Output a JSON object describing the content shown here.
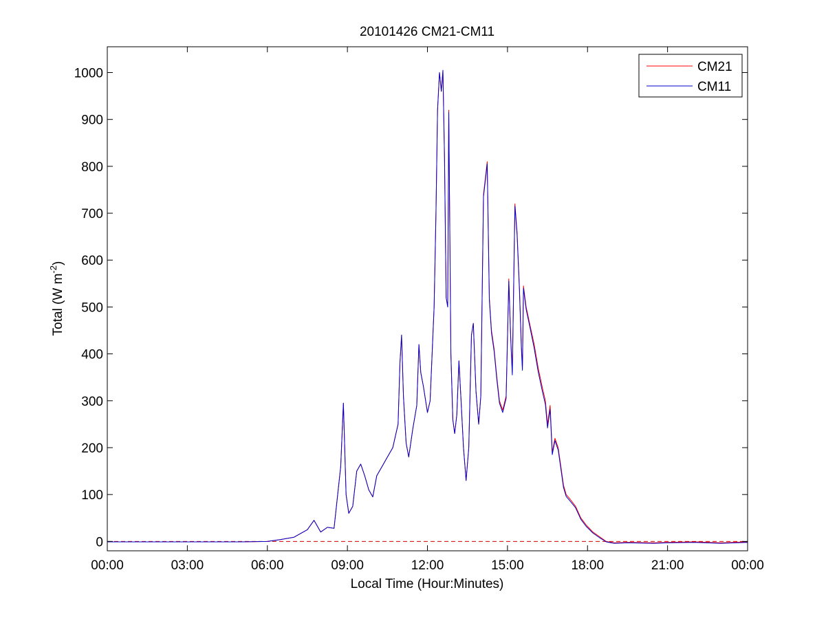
{
  "chart_data": {
    "type": "line",
    "title": "20101426 CM21-CM11",
    "xlabel": "Local Time (Hour:Minutes)",
    "ylabel": "Total (W m",
    "ylabel_sup": "-2",
    "ylabel_close": ")",
    "x_unit": "hours (local time)",
    "xlim": [
      0,
      24
    ],
    "ylim": [
      -20,
      1055
    ],
    "x_ticks": [
      0,
      3,
      6,
      9,
      12,
      15,
      18,
      21,
      24
    ],
    "x_tick_labels": [
      "00:00",
      "03:00",
      "06:00",
      "09:00",
      "12:00",
      "15:00",
      "18:00",
      "21:00",
      "00:00"
    ],
    "y_ticks": [
      0,
      100,
      200,
      300,
      400,
      500,
      600,
      700,
      800,
      900,
      1000
    ],
    "y_tick_labels": [
      "0",
      "100",
      "200",
      "300",
      "400",
      "500",
      "600",
      "700",
      "800",
      "900",
      "1000"
    ],
    "grid": false,
    "legend_position": "top-right",
    "baseline": {
      "y": 0,
      "style": "dashed",
      "color": "#cc0000"
    },
    "series": [
      {
        "name": "CM21",
        "color": "#ff0000",
        "points": [
          [
            0.0,
            -1
          ],
          [
            3.0,
            -1
          ],
          [
            5.0,
            -1
          ],
          [
            6.0,
            0
          ],
          [
            6.5,
            4
          ],
          [
            7.0,
            9
          ],
          [
            7.5,
            25
          ],
          [
            7.75,
            45
          ],
          [
            8.0,
            20
          ],
          [
            8.25,
            30
          ],
          [
            8.5,
            28
          ],
          [
            8.75,
            160
          ],
          [
            8.85,
            295
          ],
          [
            8.95,
            100
          ],
          [
            9.05,
            60
          ],
          [
            9.2,
            75
          ],
          [
            9.35,
            150
          ],
          [
            9.5,
            165
          ],
          [
            9.65,
            140
          ],
          [
            9.8,
            110
          ],
          [
            9.95,
            95
          ],
          [
            10.1,
            140
          ],
          [
            10.3,
            160
          ],
          [
            10.5,
            180
          ],
          [
            10.7,
            200
          ],
          [
            10.9,
            250
          ],
          [
            10.97,
            380
          ],
          [
            11.03,
            440
          ],
          [
            11.1,
            310
          ],
          [
            11.2,
            210
          ],
          [
            11.3,
            180
          ],
          [
            11.45,
            240
          ],
          [
            11.6,
            290
          ],
          [
            11.68,
            420
          ],
          [
            11.75,
            360
          ],
          [
            11.85,
            330
          ],
          [
            12.0,
            275
          ],
          [
            12.1,
            300
          ],
          [
            12.25,
            500
          ],
          [
            12.32,
            700
          ],
          [
            12.38,
            920
          ],
          [
            12.45,
            1000
          ],
          [
            12.52,
            960
          ],
          [
            12.58,
            1002
          ],
          [
            12.64,
            820
          ],
          [
            12.7,
            520
          ],
          [
            12.76,
            500
          ],
          [
            12.8,
            920
          ],
          [
            12.88,
            400
          ],
          [
            12.95,
            260
          ],
          [
            13.02,
            230
          ],
          [
            13.1,
            270
          ],
          [
            13.18,
            385
          ],
          [
            13.26,
            300
          ],
          [
            13.35,
            200
          ],
          [
            13.45,
            130
          ],
          [
            13.55,
            200
          ],
          [
            13.65,
            440
          ],
          [
            13.72,
            465
          ],
          [
            13.82,
            320
          ],
          [
            13.92,
            250
          ],
          [
            14.0,
            310
          ],
          [
            14.1,
            740
          ],
          [
            14.18,
            780
          ],
          [
            14.24,
            810
          ],
          [
            14.32,
            520
          ],
          [
            14.4,
            450
          ],
          [
            14.5,
            410
          ],
          [
            14.6,
            350
          ],
          [
            14.7,
            300
          ],
          [
            14.82,
            280
          ],
          [
            14.95,
            310
          ],
          [
            15.05,
            560
          ],
          [
            15.12,
            440
          ],
          [
            15.18,
            360
          ],
          [
            15.28,
            720
          ],
          [
            15.36,
            660
          ],
          [
            15.45,
            540
          ],
          [
            15.52,
            420
          ],
          [
            15.56,
            370
          ],
          [
            15.6,
            545
          ],
          [
            15.7,
            500
          ],
          [
            15.85,
            460
          ],
          [
            16.0,
            420
          ],
          [
            16.15,
            370
          ],
          [
            16.3,
            330
          ],
          [
            16.42,
            300
          ],
          [
            16.5,
            250
          ],
          [
            16.6,
            290
          ],
          [
            16.68,
            190
          ],
          [
            16.78,
            220
          ],
          [
            16.9,
            200
          ],
          [
            17.0,
            160
          ],
          [
            17.1,
            120
          ],
          [
            17.2,
            100
          ],
          [
            17.35,
            90
          ],
          [
            17.55,
            75
          ],
          [
            17.75,
            50
          ],
          [
            17.95,
            35
          ],
          [
            18.2,
            20
          ],
          [
            18.45,
            10
          ],
          [
            18.7,
            0
          ],
          [
            19.0,
            -3
          ],
          [
            19.5,
            -2
          ],
          [
            20.5,
            -3
          ],
          [
            21.0,
            -2
          ],
          [
            22.0,
            -1
          ],
          [
            23.0,
            -3
          ],
          [
            24.0,
            -1
          ]
        ]
      },
      {
        "name": "CM11",
        "color": "#0000cc",
        "points": [
          [
            0.0,
            -1
          ],
          [
            3.0,
            -1
          ],
          [
            5.0,
            -1
          ],
          [
            6.0,
            0
          ],
          [
            6.5,
            4
          ],
          [
            7.0,
            9
          ],
          [
            7.5,
            25
          ],
          [
            7.75,
            45
          ],
          [
            8.0,
            20
          ],
          [
            8.25,
            30
          ],
          [
            8.5,
            28
          ],
          [
            8.75,
            160
          ],
          [
            8.85,
            295
          ],
          [
            8.95,
            100
          ],
          [
            9.05,
            60
          ],
          [
            9.2,
            75
          ],
          [
            9.35,
            150
          ],
          [
            9.5,
            165
          ],
          [
            9.65,
            140
          ],
          [
            9.8,
            110
          ],
          [
            9.95,
            95
          ],
          [
            10.1,
            140
          ],
          [
            10.3,
            160
          ],
          [
            10.5,
            180
          ],
          [
            10.7,
            200
          ],
          [
            10.9,
            250
          ],
          [
            10.97,
            380
          ],
          [
            11.03,
            440
          ],
          [
            11.1,
            310
          ],
          [
            11.2,
            210
          ],
          [
            11.3,
            180
          ],
          [
            11.45,
            240
          ],
          [
            11.6,
            290
          ],
          [
            11.68,
            420
          ],
          [
            11.75,
            360
          ],
          [
            11.85,
            330
          ],
          [
            12.0,
            275
          ],
          [
            12.1,
            300
          ],
          [
            12.25,
            500
          ],
          [
            12.32,
            700
          ],
          [
            12.38,
            920
          ],
          [
            12.45,
            1000
          ],
          [
            12.52,
            960
          ],
          [
            12.58,
            1005
          ],
          [
            12.64,
            820
          ],
          [
            12.7,
            520
          ],
          [
            12.76,
            500
          ],
          [
            12.8,
            915
          ],
          [
            12.88,
            400
          ],
          [
            12.95,
            260
          ],
          [
            13.02,
            230
          ],
          [
            13.1,
            270
          ],
          [
            13.18,
            385
          ],
          [
            13.26,
            300
          ],
          [
            13.35,
            200
          ],
          [
            13.45,
            130
          ],
          [
            13.55,
            200
          ],
          [
            13.65,
            440
          ],
          [
            13.72,
            465
          ],
          [
            13.82,
            320
          ],
          [
            13.92,
            250
          ],
          [
            14.0,
            310
          ],
          [
            14.1,
            735
          ],
          [
            14.18,
            775
          ],
          [
            14.24,
            805
          ],
          [
            14.32,
            515
          ],
          [
            14.4,
            445
          ],
          [
            14.5,
            405
          ],
          [
            14.6,
            345
          ],
          [
            14.7,
            295
          ],
          [
            14.82,
            275
          ],
          [
            14.95,
            305
          ],
          [
            15.05,
            555
          ],
          [
            15.12,
            435
          ],
          [
            15.18,
            355
          ],
          [
            15.28,
            715
          ],
          [
            15.36,
            655
          ],
          [
            15.45,
            535
          ],
          [
            15.52,
            415
          ],
          [
            15.56,
            365
          ],
          [
            15.6,
            540
          ],
          [
            15.7,
            495
          ],
          [
            15.85,
            455
          ],
          [
            16.0,
            412
          ],
          [
            16.15,
            362
          ],
          [
            16.3,
            322
          ],
          [
            16.42,
            292
          ],
          [
            16.5,
            242
          ],
          [
            16.6,
            282
          ],
          [
            16.68,
            185
          ],
          [
            16.78,
            215
          ],
          [
            16.9,
            195
          ],
          [
            17.0,
            155
          ],
          [
            17.1,
            115
          ],
          [
            17.2,
            96
          ],
          [
            17.35,
            86
          ],
          [
            17.55,
            72
          ],
          [
            17.75,
            47
          ],
          [
            17.95,
            32
          ],
          [
            18.2,
            18
          ],
          [
            18.45,
            8
          ],
          [
            18.7,
            -1
          ],
          [
            19.0,
            -4
          ],
          [
            19.5,
            -3
          ],
          [
            20.5,
            -4
          ],
          [
            21.0,
            -3
          ],
          [
            22.0,
            -2
          ],
          [
            23.0,
            -4
          ],
          [
            24.0,
            -2
          ]
        ]
      }
    ]
  }
}
